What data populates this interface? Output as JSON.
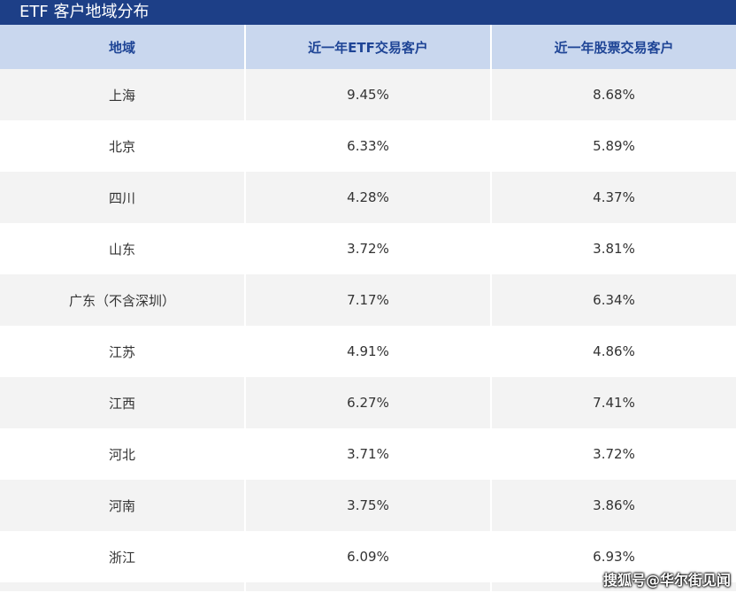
{
  "title": "ETF 客户地域分布",
  "chart_data": {
    "type": "table",
    "title": "ETF 客户地域分布",
    "columns": [
      "地域",
      "近一年ETF交易客户",
      "近一年股票交易客户"
    ],
    "rows": [
      {
        "region": "上海",
        "etf": "9.45%",
        "stock": "8.68%"
      },
      {
        "region": "北京",
        "etf": "6.33%",
        "stock": "5.89%"
      },
      {
        "region": "四川",
        "etf": "4.28%",
        "stock": "4.37%"
      },
      {
        "region": "山东",
        "etf": "3.72%",
        "stock": "3.81%"
      },
      {
        "region": "广东（不含深圳）",
        "etf": "7.17%",
        "stock": "6.34%"
      },
      {
        "region": "江苏",
        "etf": "4.91%",
        "stock": "4.86%"
      },
      {
        "region": "江西",
        "etf": "6.27%",
        "stock": "7.41%"
      },
      {
        "region": "河北",
        "etf": "3.71%",
        "stock": "3.72%"
      },
      {
        "region": "河南",
        "etf": "3.75%",
        "stock": "3.86%"
      },
      {
        "region": "浙江",
        "etf": "6.09%",
        "stock": "6.93%"
      }
    ]
  },
  "watermark": "搜狐号@华尔街见闻"
}
